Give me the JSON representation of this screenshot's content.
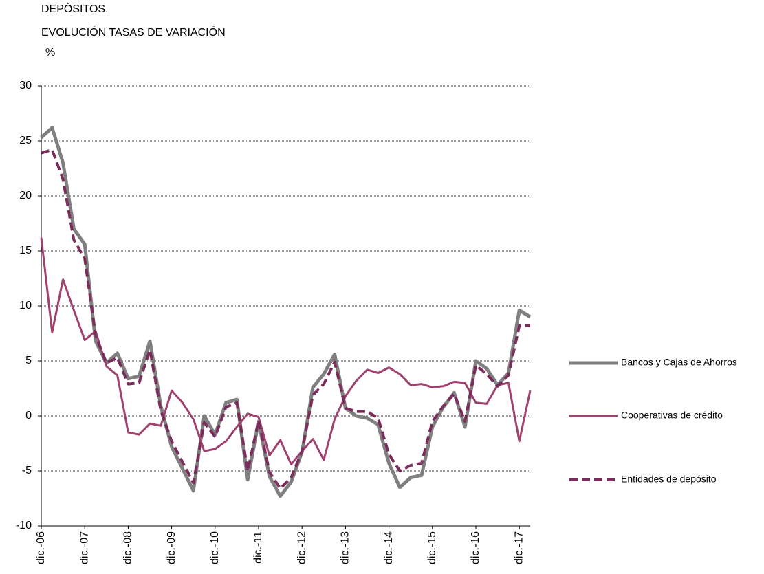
{
  "chart_data": {
    "type": "line",
    "title": "DEPÓSITOS.",
    "subtitle": "EVOLUCIÓN TASAS DE VARIACIÓN",
    "ylabel": "%",
    "categories": [
      "dic.-06",
      null,
      null,
      null,
      "dic.-07",
      null,
      null,
      null,
      "dic.-08",
      null,
      null,
      null,
      "dic.-09",
      null,
      null,
      null,
      "dic.-10",
      null,
      null,
      null,
      "dic.-11",
      null,
      null,
      null,
      "dic.-12",
      null,
      null,
      null,
      "dic.-13",
      null,
      null,
      null,
      "dic.-14",
      null,
      null,
      null,
      "dic.-15",
      null,
      null,
      null,
      "dic.-16",
      null,
      null,
      null,
      "dic.-17",
      null
    ],
    "series": [
      {
        "name": "Bancos y Cajas de Ahorros",
        "color": "#808080",
        "dashed": false,
        "values": [
          25.3,
          26.2,
          23,
          17,
          15.6,
          6.8,
          4.8,
          5.7,
          3.4,
          3.6,
          6.8,
          0.9,
          -2.8,
          -4.8,
          -6.8,
          0,
          -1.7,
          1.2,
          1.5,
          -5.8,
          -0.5,
          -5.5,
          -7.3,
          -6.0,
          -3.3,
          2.6,
          3.8,
          5.6,
          0.7,
          0.0,
          -0.2,
          -0.8,
          -4.3,
          -6.5,
          -5.6,
          -5.4,
          -1.0,
          0.8,
          2.1,
          -1.0,
          5.0,
          4.3,
          2.8,
          3.9,
          9.6,
          9.0
        ]
      },
      {
        "name": "Cooperativas de crédito",
        "color": "#a0426f",
        "dashed": false,
        "values": [
          16.2,
          7.6,
          12.4,
          9.6,
          6.9,
          7.7,
          4.5,
          3.7,
          -1.5,
          -1.7,
          -0.7,
          -0.9,
          2.3,
          1.2,
          -0.3,
          -3.2,
          -3.0,
          -2.3,
          -1.0,
          0.2,
          -0.1,
          -3.6,
          -2.2,
          -4.4,
          -3.2,
          -2.1,
          -4.0,
          -0.3,
          1.8,
          3.2,
          4.2,
          3.9,
          4.4,
          3.8,
          2.8,
          2.9,
          2.6,
          2.7,
          3.1,
          3.0,
          1.2,
          1.1,
          2.8,
          3.0,
          -2.3,
          2.3
        ]
      },
      {
        "name": "Entidades de depósito",
        "color": "#7b2d5c",
        "dashed": true,
        "values": [
          23.9,
          24.2,
          21.5,
          16,
          14.3,
          7.3,
          4.8,
          5.3,
          2.9,
          3.0,
          6.0,
          0.5,
          -2.3,
          -4.2,
          -6.1,
          -0.6,
          -1.9,
          0.8,
          1.2,
          -5.0,
          -0.4,
          -5.1,
          -6.6,
          -5.6,
          -3.2,
          1.9,
          2.9,
          4.9,
          0.7,
          0.4,
          0.4,
          -0.2,
          -3.5,
          -5.0,
          -4.5,
          -4.3,
          -0.5,
          0.9,
          2.0,
          -0.5,
          4.6,
          3.8,
          2.7,
          3.7,
          8.2,
          8.2
        ]
      }
    ],
    "ylim": [
      -10,
      30
    ],
    "yticks": [
      -10,
      -5,
      0,
      5,
      10,
      15,
      20,
      25,
      30
    ],
    "grid": true,
    "legend": "right"
  }
}
